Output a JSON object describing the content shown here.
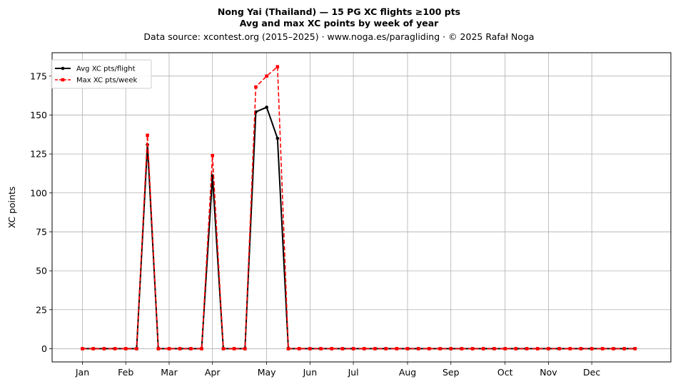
{
  "chart_data": {
    "type": "line",
    "title": "Nong Yai (Thailand)  —  15 PG XC flights ≥100 pts",
    "subtitle": "Avg and max XC points by week of year",
    "source_line": "Data source: xcontest.org (2015–2025)  ·  www.noga.es/paragliding  ·  © 2025 Rafał Noga",
    "ylabel": "XC points",
    "xlabel": "",
    "x_range": [
      -2.8,
      54.3
    ],
    "ylim": [
      -8.5,
      190
    ],
    "y_ticks": [
      0,
      25,
      50,
      75,
      100,
      125,
      150,
      175
    ],
    "month_ticks": [
      {
        "label": "Jan",
        "week": 0
      },
      {
        "label": "Feb",
        "week": 4
      },
      {
        "label": "Mar",
        "week": 8
      },
      {
        "label": "Apr",
        "week": 12
      },
      {
        "label": "May",
        "week": 17
      },
      {
        "label": "Jun",
        "week": 21
      },
      {
        "label": "Jul",
        "week": 25
      },
      {
        "label": "Aug",
        "week": 30
      },
      {
        "label": "Sep",
        "week": 34
      },
      {
        "label": "Oct",
        "week": 39
      },
      {
        "label": "Nov",
        "week": 43
      },
      {
        "label": "Dec",
        "week": 47
      }
    ],
    "grid": true,
    "legend_position": "top-left",
    "series": [
      {
        "name": "Avg XC pts/flight",
        "color": "#000000",
        "style": "solid",
        "marker": "circle",
        "values": [
          0,
          0,
          0,
          0,
          0,
          0,
          131,
          0,
          0,
          0,
          0,
          0,
          111,
          0,
          0,
          0,
          152,
          155,
          135,
          0,
          0,
          0,
          0,
          0,
          0,
          0,
          0,
          0,
          0,
          0,
          0,
          0,
          0,
          0,
          0,
          0,
          0,
          0,
          0,
          0,
          0,
          0,
          0,
          0,
          0,
          0,
          0,
          0,
          0,
          0,
          0,
          0
        ]
      },
      {
        "name": "Max XC pts/week",
        "color": "#ff0000",
        "style": "dashed",
        "marker": "square",
        "values": [
          0,
          0,
          0,
          0,
          0,
          0,
          137,
          0,
          0,
          0,
          0,
          0,
          124,
          0,
          0,
          0,
          168,
          175,
          181,
          0,
          0,
          0,
          0,
          0,
          0,
          0,
          0,
          0,
          0,
          0,
          0,
          0,
          0,
          0,
          0,
          0,
          0,
          0,
          0,
          0,
          0,
          0,
          0,
          0,
          0,
          0,
          0,
          0,
          0,
          0,
          0,
          0
        ]
      }
    ]
  }
}
